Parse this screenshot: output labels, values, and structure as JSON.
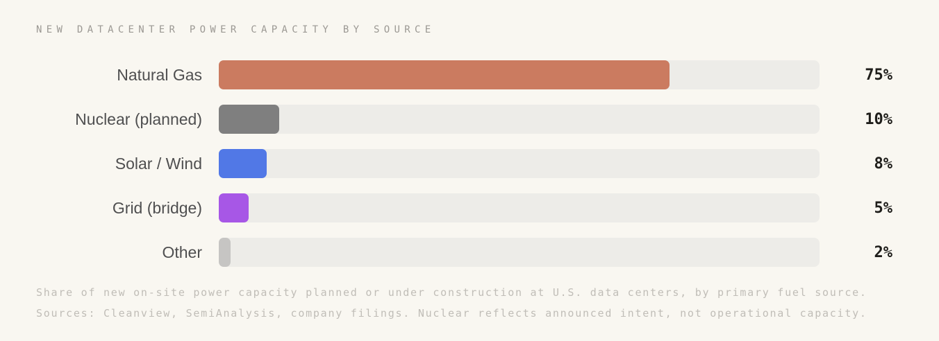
{
  "page": {
    "background_color": "#F9F7F1"
  },
  "header": {
    "title": "NEW DATACENTER POWER CAPACITY BY SOURCE"
  },
  "chart_data": {
    "type": "bar",
    "orientation": "horizontal",
    "title": "NEW DATACENTER POWER CAPACITY BY SOURCE",
    "categories": [
      "Natural Gas",
      "Nuclear (planned)",
      "Solar / Wind",
      "Grid (bridge)",
      "Other"
    ],
    "values": [
      75,
      10,
      8,
      5,
      2
    ],
    "value_labels": [
      "75%",
      "10%",
      "8%",
      "5%",
      "2%"
    ],
    "bar_colors": [
      "#CB7B60",
      "#7F7F7F",
      "#5178E6",
      "#A757E6",
      "#C6C5C3"
    ],
    "track_color": "#EDECE8",
    "xlim": [
      0,
      100
    ],
    "grid": false,
    "legend": false,
    "value_label_position": "right"
  },
  "footer": {
    "line1": "Share of new on-site power capacity planned or under construction at U.S. data centers, by primary fuel source.",
    "line2": "Sources: Cleanview, SemiAnalysis, company filings. Nuclear reflects announced intent, not operational capacity."
  }
}
